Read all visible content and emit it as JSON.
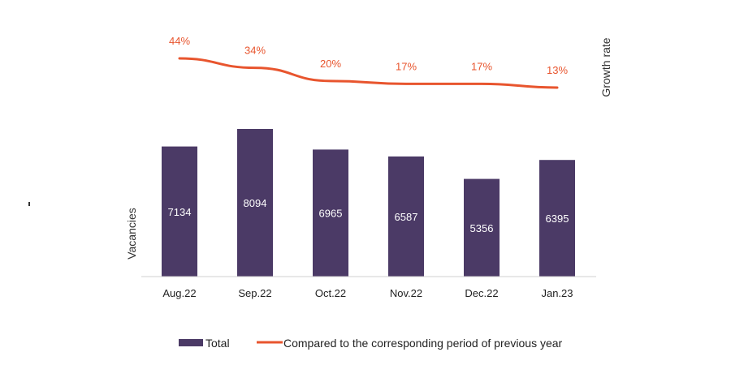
{
  "chart_data": {
    "type": "bar+line",
    "categories": [
      "Aug.22",
      "Sep.22",
      "Oct.22",
      "Nov.22",
      "Dec.22",
      "Jan.23"
    ],
    "bar_series": {
      "name": "Total",
      "values": [
        7134,
        8094,
        6965,
        6587,
        5356,
        6395
      ],
      "color": "#4b3a66"
    },
    "line_series": {
      "name": "Compared to the corresponding period of previous year",
      "values": [
        44,
        34,
        20,
        17,
        17,
        13
      ],
      "labels": [
        "44%",
        "34%",
        "20%",
        "17%",
        "17%",
        "13%"
      ],
      "color": "#e8552e"
    },
    "ylabel": "Vacancies",
    "y2label": "Growth rate",
    "ylim": [
      0,
      8094
    ],
    "y2lim": [
      13,
      44
    ],
    "grid": false,
    "legend_position": "bottom"
  }
}
